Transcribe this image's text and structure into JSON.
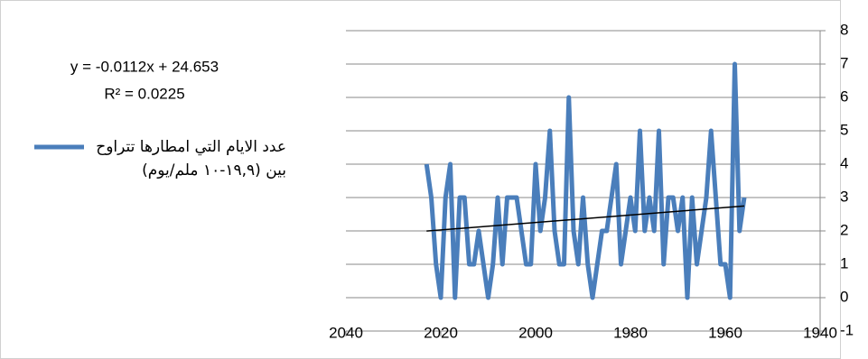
{
  "chart_data": {
    "type": "line",
    "x": [
      2023,
      2022,
      2021,
      2020,
      2019,
      2018,
      2017,
      2016,
      2015,
      2014,
      2013,
      2012,
      2011,
      2010,
      2009,
      2008,
      2007,
      2006,
      2005,
      2004,
      2003,
      2002,
      2001,
      2000,
      1999,
      1998,
      1997,
      1996,
      1995,
      1994,
      1993,
      1992,
      1991,
      1990,
      1989,
      1988,
      1987,
      1986,
      1985,
      1984,
      1983,
      1982,
      1981,
      1980,
      1979,
      1978,
      1977,
      1976,
      1975,
      1974,
      1973,
      1972,
      1971,
      1970,
      1969,
      1968,
      1967,
      1966,
      1965,
      1964,
      1963,
      1962,
      1961,
      1960,
      1959,
      1958,
      1957,
      1956
    ],
    "series": [
      {
        "name": "عدد الايام التي امطارها تتراوح بين (١٩,٩-١٠ ملم/يوم)",
        "color": "#4a7ebb",
        "values": [
          4,
          3,
          1,
          0,
          3,
          4,
          0,
          3,
          3,
          1,
          1,
          2,
          1,
          0,
          1,
          3,
          1,
          3,
          3,
          3,
          2,
          1,
          1,
          4,
          2,
          3,
          5,
          2,
          1,
          1,
          6,
          2,
          1,
          3,
          1,
          0,
          1,
          2,
          2,
          3,
          4,
          1,
          2,
          3,
          2,
          5,
          2,
          3,
          2,
          5,
          1,
          3,
          3,
          2,
          3,
          0,
          3,
          1,
          2,
          3,
          5,
          3,
          1,
          1,
          0,
          7,
          2,
          3
        ]
      }
    ],
    "trendline": {
      "label": "y = -0.0112x + 24.653",
      "r2_label": "R² = 0.0225",
      "slope": -0.0112,
      "intercept": 24.653,
      "color": "#000000"
    },
    "xlim": [
      2040,
      1940
    ],
    "xticks": [
      2040,
      2020,
      2000,
      1980,
      1960,
      1940
    ],
    "ylim": [
      -1,
      8
    ],
    "yticks": [
      -1,
      0,
      1,
      2,
      3,
      4,
      5,
      6,
      7,
      8
    ],
    "grid": true,
    "legend": "left"
  }
}
